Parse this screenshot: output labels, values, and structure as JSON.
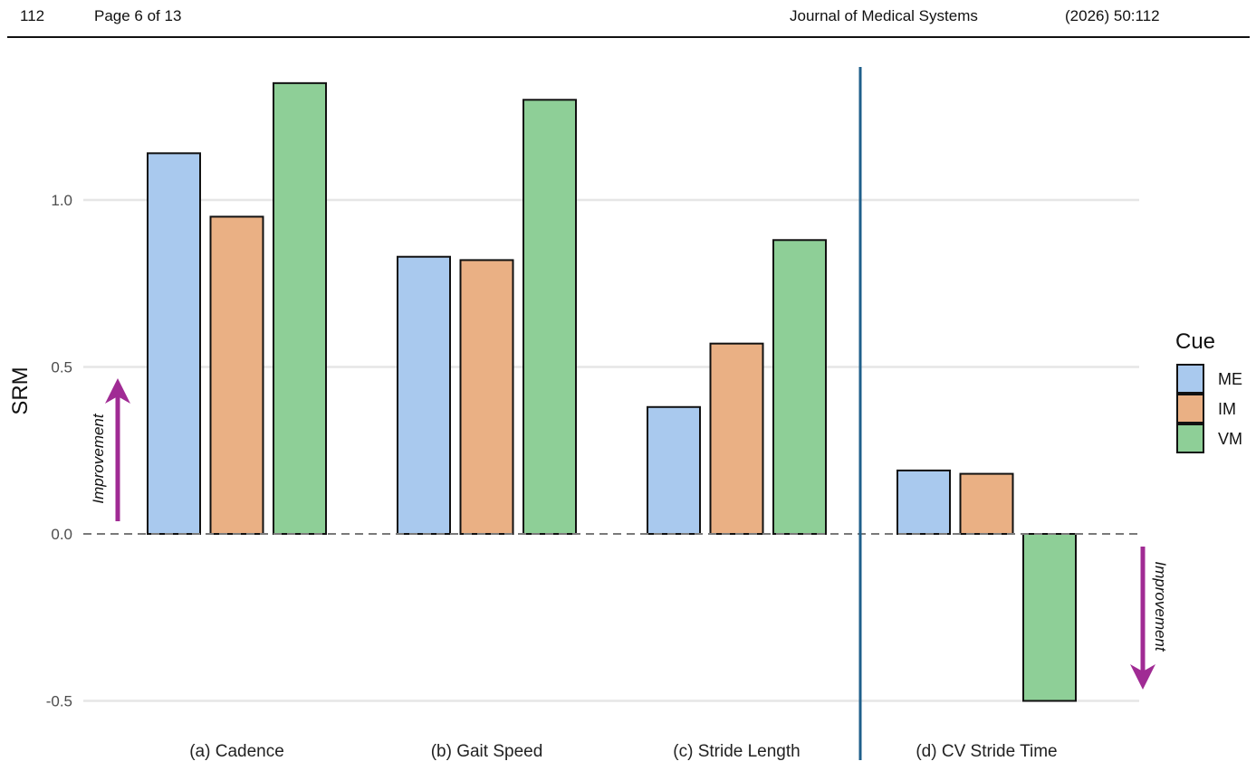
{
  "header": {
    "page_number": "112",
    "page_label": "Page 6 of 13",
    "journal": "Journal of Medical Systems",
    "citation": "(2026) 50:112"
  },
  "chart_data": {
    "type": "bar",
    "title": "",
    "xlabel": "",
    "ylabel": "SRM",
    "ylim": [
      -0.5,
      1.35
    ],
    "yticks": [
      "1.0",
      "0.5",
      "0.0",
      "-0.5"
    ],
    "categories": [
      "(a) Cadence",
      "(b) Gait Speed",
      "(c) Stride Length",
      "(d) CV Stride Time"
    ],
    "series": [
      {
        "name": "ME",
        "color": "#a9c9ee",
        "values": [
          1.14,
          0.83,
          0.38,
          0.19
        ]
      },
      {
        "name": "IM",
        "color": "#eab084",
        "values": [
          0.95,
          0.82,
          0.57,
          0.18
        ]
      },
      {
        "name": "VM",
        "color": "#8ecf97",
        "values": [
          1.35,
          1.3,
          0.88,
          -0.5
        ]
      }
    ],
    "legend": {
      "title": "Cue",
      "placement": "right"
    },
    "grid": true,
    "zero_line": "dashed",
    "separator_color": "#1f5f8b",
    "annotations": [
      {
        "text": "Improvement",
        "direction": "up",
        "color": "#a02b94"
      },
      {
        "text": "Improvement",
        "direction": "down",
        "color": "#a02b94"
      }
    ]
  }
}
